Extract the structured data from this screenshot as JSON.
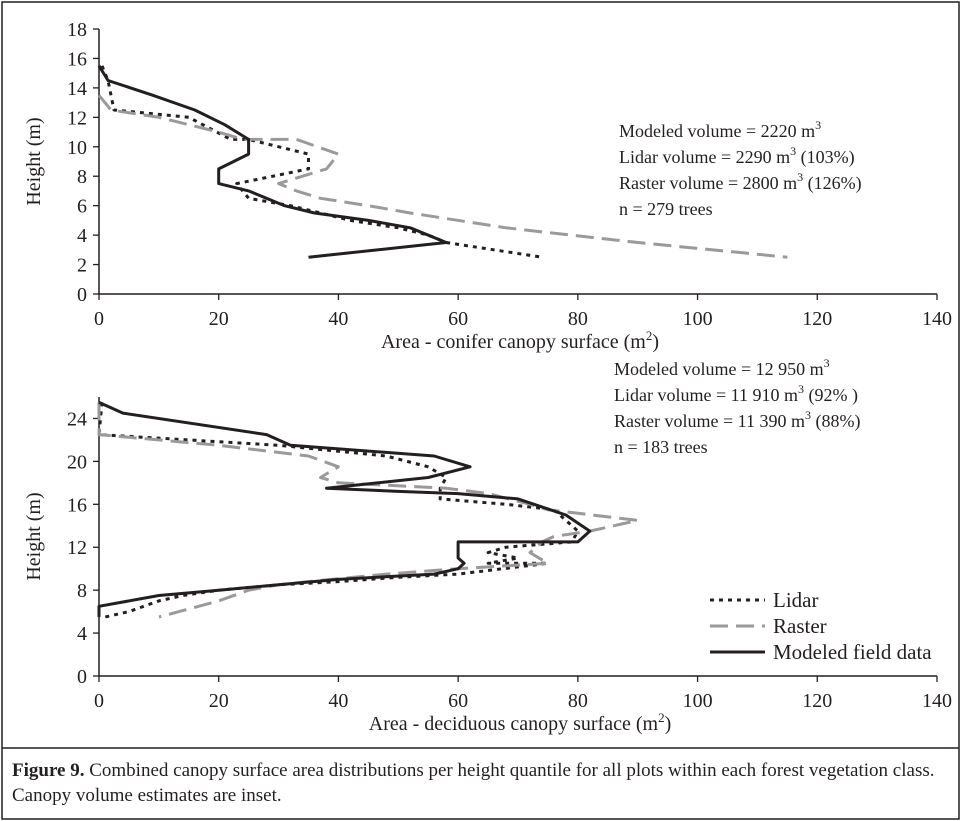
{
  "figure": {
    "caption_label": "Figure 9.",
    "caption_text": " Combined canopy surface area distributions per height quantile for all plots within each forest vegetation class. Canopy volume estimates are inset."
  },
  "chart_data": [
    {
      "type": "line",
      "xlabel": "Area - conifer canopy surface (m",
      "xlabel_sup": "2",
      "xlabel_tail": ")",
      "ylabel": "Height (m)",
      "xlim": [
        0,
        140
      ],
      "ylim": [
        0,
        18
      ],
      "xticks": [
        0,
        20,
        40,
        60,
        80,
        100,
        120,
        140
      ],
      "yticks": [
        0,
        2,
        4,
        6,
        8,
        10,
        12,
        14,
        16,
        18
      ],
      "grid": false,
      "series": [
        {
          "id": "lidar",
          "color": "#231f20",
          "style": "dotted",
          "points": [
            [
              0.5,
              15.5
            ],
            [
              1.5,
              14.5
            ],
            [
              2.5,
              12.5
            ],
            [
              15,
              12
            ],
            [
              22,
              10.5
            ],
            [
              25,
              10.5
            ],
            [
              35,
              9.5
            ],
            [
              35,
              8.5
            ],
            [
              23,
              7.5
            ],
            [
              25,
              6.5
            ],
            [
              32,
              6
            ],
            [
              37,
              5.5
            ],
            [
              42,
              5
            ],
            [
              50,
              4.5
            ],
            [
              55,
              4
            ],
            [
              58,
              3.5
            ],
            [
              74,
              2.5
            ]
          ]
        },
        {
          "id": "raster",
          "color": "#9a9a9a",
          "style": "dashed",
          "points": [
            [
              0,
              13.5
            ],
            [
              2,
              12.5
            ],
            [
              10,
              12
            ],
            [
              20,
              11
            ],
            [
              24,
              10.5
            ],
            [
              33,
              10.5
            ],
            [
              40,
              9.5
            ],
            [
              38,
              8.5
            ],
            [
              30,
              7.5
            ],
            [
              33,
              7
            ],
            [
              37,
              6.5
            ],
            [
              45,
              6
            ],
            [
              52,
              5.5
            ],
            [
              68,
              4.5
            ],
            [
              90,
              3.5
            ],
            [
              115,
              2.5
            ]
          ]
        },
        {
          "id": "modeled",
          "color": "#231f20",
          "style": "solid",
          "points": [
            [
              0,
              15.5
            ],
            [
              1.5,
              14.5
            ],
            [
              9,
              13.5
            ],
            [
              16,
              12.5
            ],
            [
              21,
              11.5
            ],
            [
              25,
              10.5
            ],
            [
              25,
              9.5
            ],
            [
              20,
              8.5
            ],
            [
              20,
              7.5
            ],
            [
              25,
              7
            ],
            [
              31,
              6
            ],
            [
              36,
              5.5
            ],
            [
              45,
              5
            ],
            [
              52,
              4.5
            ],
            [
              58,
              3.5
            ],
            [
              35,
              2.5
            ]
          ]
        }
      ],
      "annotations": [
        {
          "text": "Modeled volume = 2220 m",
          "sup": "3",
          "tail": ""
        },
        {
          "text": "Lidar volume = 2290 m",
          "sup": "3",
          "tail": " (103%)"
        },
        {
          "text": "Raster volume = 2800 m",
          "sup": "3",
          "tail": " (126%)"
        },
        {
          "text": "n = 279 trees",
          "sup": "",
          "tail": ""
        }
      ]
    },
    {
      "type": "line",
      "xlabel": "Area - deciduous canopy surface (m",
      "xlabel_sup": "2",
      "xlabel_tail": ")",
      "ylabel": "Height (m)",
      "xlim": [
        0,
        140
      ],
      "ylim": [
        0,
        26
      ],
      "xticks": [
        0,
        20,
        40,
        60,
        80,
        100,
        120,
        140
      ],
      "yticks": [
        0,
        4,
        8,
        12,
        16,
        20,
        24
      ],
      "grid": false,
      "legend_position": "bottom-right",
      "series": [
        {
          "id": "lidar",
          "name": "Lidar",
          "color": "#231f20",
          "style": "dotted",
          "points": [
            [
              0.5,
              25.5
            ],
            [
              0,
              22.5
            ],
            [
              30,
              21.5
            ],
            [
              48,
              20.5
            ],
            [
              55,
              19.5
            ],
            [
              58,
              18.5
            ],
            [
              57,
              17.5
            ],
            [
              57,
              16.5
            ],
            [
              68,
              16
            ],
            [
              76,
              15.5
            ],
            [
              78,
              14.5
            ],
            [
              80,
              13.5
            ],
            [
              79,
              12.5
            ],
            [
              68,
              12
            ],
            [
              65,
              11.5
            ],
            [
              70,
              11
            ],
            [
              65,
              10.5
            ],
            [
              75,
              10.5
            ],
            [
              60,
              9.5
            ],
            [
              50,
              9.2
            ],
            [
              40,
              8.8
            ],
            [
              30,
              8.5
            ],
            [
              20,
              8
            ],
            [
              14,
              7.5
            ],
            [
              10,
              7
            ],
            [
              5,
              6
            ],
            [
              1,
              5.5
            ]
          ]
        },
        {
          "id": "raster",
          "name": "Raster",
          "color": "#9a9a9a",
          "style": "dashed",
          "points": [
            [
              0,
              25.5
            ],
            [
              0,
              22.5
            ],
            [
              20,
              21.5
            ],
            [
              35,
              20.5
            ],
            [
              40,
              19.5
            ],
            [
              37,
              18.5
            ],
            [
              40,
              18
            ],
            [
              58,
              17.5
            ],
            [
              65,
              17
            ],
            [
              72,
              16
            ],
            [
              75,
              15.5
            ],
            [
              90,
              14.5
            ],
            [
              82,
              13.5
            ],
            [
              76,
              13
            ],
            [
              74,
              12.5
            ],
            [
              72,
              11.5
            ],
            [
              75,
              10.5
            ],
            [
              60,
              10
            ],
            [
              48,
              9.5
            ],
            [
              35,
              8.8
            ],
            [
              30,
              8.5
            ],
            [
              25,
              8
            ],
            [
              20,
              7
            ],
            [
              10,
              5.5
            ]
          ]
        },
        {
          "id": "modeled",
          "name": "Modeled field data",
          "color": "#231f20",
          "style": "solid",
          "points": [
            [
              0,
              25.5
            ],
            [
              4,
              24.5
            ],
            [
              28,
              22.5
            ],
            [
              32,
              21.5
            ],
            [
              56,
              20.5
            ],
            [
              62,
              19.5
            ],
            [
              55,
              18.5
            ],
            [
              38,
              17.5
            ],
            [
              50,
              17.2
            ],
            [
              60,
              17
            ],
            [
              70,
              16.5
            ],
            [
              78,
              15
            ],
            [
              82,
              13.5
            ],
            [
              80,
              12.5
            ],
            [
              60,
              12.5
            ],
            [
              60,
              11
            ],
            [
              61,
              10.5
            ],
            [
              60,
              10
            ],
            [
              56,
              9.5
            ],
            [
              40,
              9
            ],
            [
              30,
              8.5
            ],
            [
              20,
              8
            ],
            [
              10,
              7.5
            ],
            [
              0,
              6.5
            ],
            [
              0,
              5.5
            ]
          ]
        }
      ],
      "annotations": [
        {
          "text": "Modeled volume = 12 950 m",
          "sup": "3",
          "tail": ""
        },
        {
          "text": "Lidar volume = 11 910 m",
          "sup": "3",
          "tail": " (92% )"
        },
        {
          "text": "Raster volume = 11 390 m",
          "sup": "3",
          "tail": " (88%)"
        },
        {
          "text": "n = 183 trees",
          "sup": "",
          "tail": ""
        }
      ]
    }
  ]
}
